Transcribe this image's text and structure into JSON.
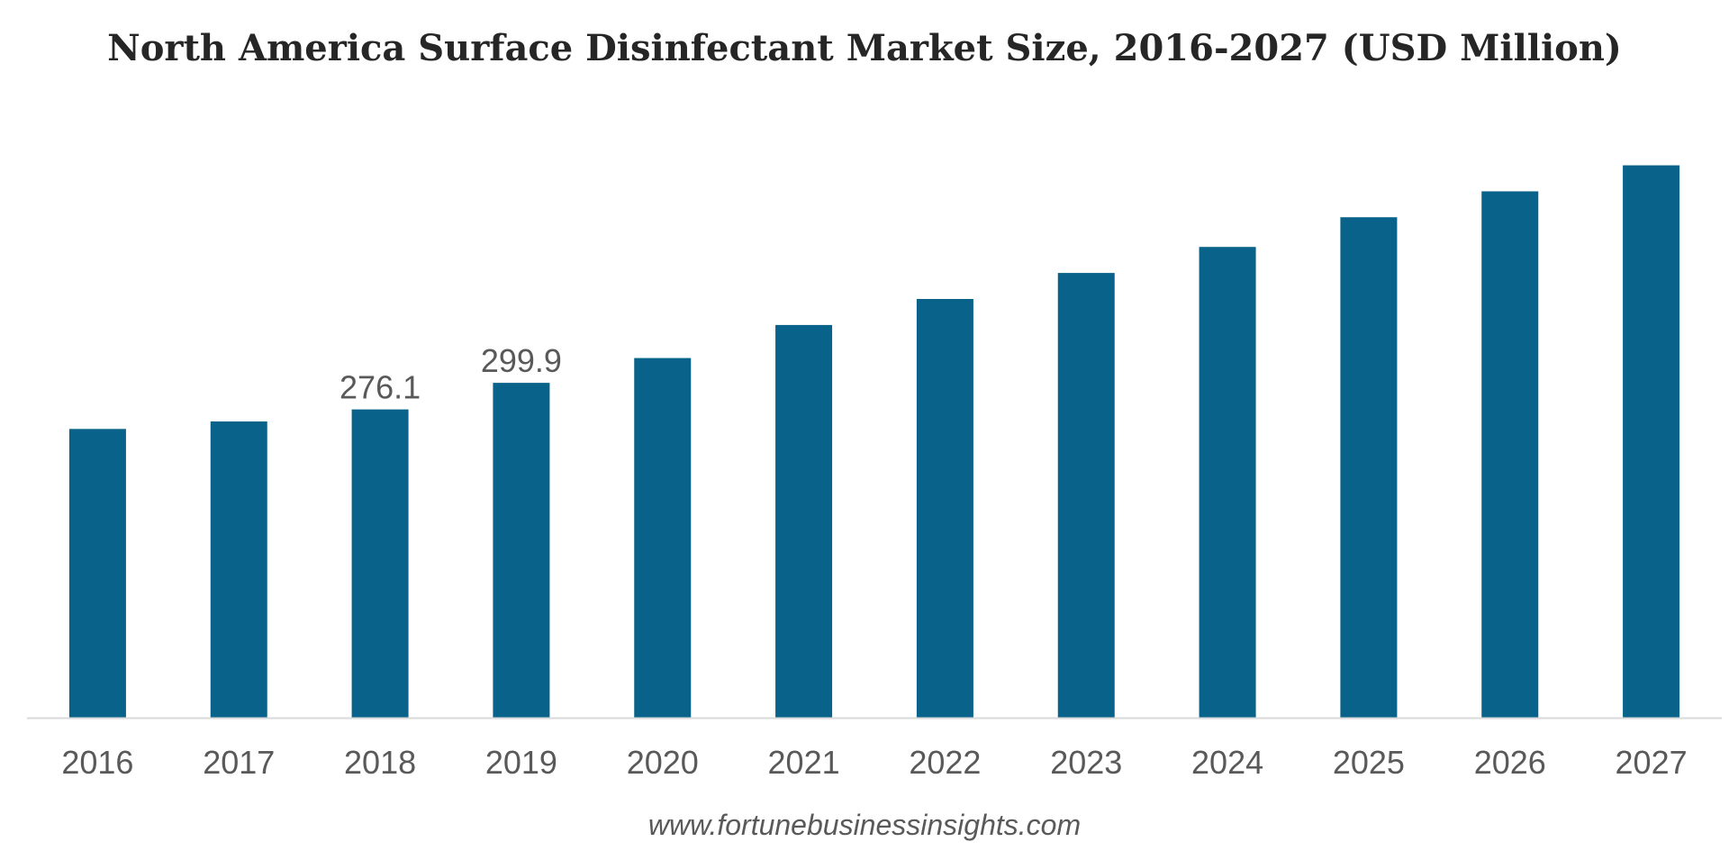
{
  "chart_data": {
    "type": "bar",
    "title": "North America Surface Disinfectant Market Size, 2016-2027 (USD Million)",
    "xlabel": "",
    "ylabel": "",
    "categories": [
      "2016",
      "2017",
      "2018",
      "2019",
      "2020",
      "2021",
      "2022",
      "2023",
      "2024",
      "2025",
      "2026",
      "2027"
    ],
    "values": [
      258.6,
      265.3,
      276.1,
      299.9,
      322.1,
      351.7,
      375.0,
      398.3,
      421.6,
      448.2,
      471.4,
      494.7
    ],
    "data_labels": {
      "2018": "276.1",
      "2019": "299.9"
    },
    "ylim": [
      0,
      500
    ],
    "grid": false,
    "legend": "none",
    "bar_color": "#08628a",
    "axis_color": "#d9d9d9"
  },
  "source_text": "www.fortunebusinessinsights.com"
}
